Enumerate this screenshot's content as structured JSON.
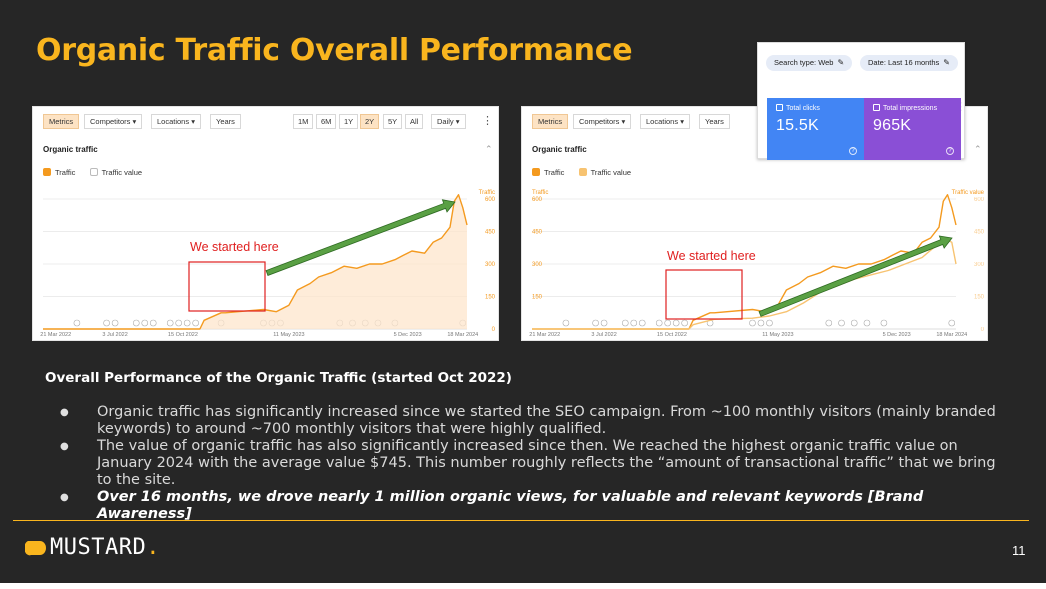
{
  "slide": {
    "title": "Organic Traffic Overall Performance",
    "page_number": "11"
  },
  "colors": {
    "background": "#262626",
    "accent": "#f9b51e",
    "traffic_line": "#f49a1f",
    "traffic_value_line": "#f7c371",
    "annotation_box": "#e02020",
    "arrow": "#5aa044",
    "gsc_clicks": "#4285f4",
    "gsc_impressions": "#8a4fd6"
  },
  "panel1": {
    "toolbar": {
      "metrics": "Metrics",
      "competitors": "Competitors ▾",
      "locations": "Locations ▾",
      "years": "Years"
    },
    "ranges": [
      "1M",
      "6M",
      "1Y",
      "2Y",
      "5Y",
      "All"
    ],
    "active_range": "2Y",
    "granularity": "Daily ▾",
    "header": "Organic traffic",
    "legend": {
      "traffic": "Traffic",
      "traffic_value": "Traffic value"
    },
    "annotation": "We started here"
  },
  "panel2": {
    "toolbar": {
      "metrics": "Metrics",
      "competitors": "Competitors ▾",
      "locations": "Locations ▾",
      "years": "Years"
    },
    "header": "Organic traffic",
    "legend": {
      "traffic": "Traffic",
      "traffic_value": "Traffic value"
    },
    "annotation": "We started here"
  },
  "gsc": {
    "search_type": "Search type: Web",
    "date_range": "Date: Last 16 months",
    "total_clicks_label": "Total clicks",
    "total_clicks_value": "15.5K",
    "total_impressions_label": "Total impressions",
    "total_impressions_value": "965K"
  },
  "chart_data": [
    {
      "type": "area",
      "title": "Organic traffic",
      "y_axis_label": "Traffic",
      "ylim": [
        0,
        600
      ],
      "y_ticks": [
        "600",
        "450",
        "300",
        "150",
        "0"
      ],
      "x_ticks": [
        "21 Mar 2022",
        "3 Jul 2022",
        "15 Oct 2022",
        "11 May 2023",
        "5 Dec 2023",
        "18 Mar 2024"
      ],
      "series": [
        {
          "name": "Traffic",
          "x": [
            0.0,
            0.37,
            0.38,
            0.42,
            0.43,
            0.52,
            0.55,
            0.58,
            0.6,
            0.63,
            0.65,
            0.68,
            0.71,
            0.74,
            0.77,
            0.8,
            0.83,
            0.85,
            0.87,
            0.9,
            0.92,
            0.94,
            0.96,
            0.97,
            0.98,
            0.99,
            1.0
          ],
          "values": [
            0,
            0,
            40,
            75,
            75,
            90,
            80,
            110,
            180,
            210,
            240,
            260,
            290,
            280,
            300,
            300,
            320,
            340,
            360,
            350,
            400,
            420,
            470,
            590,
            620,
            560,
            480
          ]
        }
      ]
    },
    {
      "type": "line",
      "title": "Organic traffic",
      "y_axis_label": "Traffic",
      "y2_axis_label": "Traffic value",
      "ylim": [
        0,
        600
      ],
      "y_ticks": [
        "600",
        "450",
        "300",
        "150",
        "0"
      ],
      "x_ticks": [
        "21 Mar 2022",
        "3 Jul 2022",
        "15 Oct 2022",
        "11 May 2023",
        "5 Dec 2023",
        "18 Mar 2024"
      ],
      "series": [
        {
          "name": "Traffic",
          "x": [
            0.0,
            0.37,
            0.38,
            0.42,
            0.43,
            0.52,
            0.55,
            0.58,
            0.6,
            0.63,
            0.65,
            0.68,
            0.71,
            0.74,
            0.77,
            0.8,
            0.83,
            0.85,
            0.87,
            0.9,
            0.92,
            0.94,
            0.96,
            0.97,
            0.98,
            0.99,
            1.0
          ],
          "values": [
            0,
            0,
            40,
            75,
            75,
            90,
            80,
            110,
            180,
            210,
            240,
            260,
            290,
            280,
            300,
            300,
            320,
            340,
            360,
            350,
            400,
            420,
            470,
            590,
            620,
            560,
            480
          ]
        },
        {
          "name": "Traffic value",
          "x": [
            0.0,
            0.37,
            0.38,
            0.42,
            0.43,
            0.52,
            0.56,
            0.6,
            0.64,
            0.68,
            0.72,
            0.76,
            0.8,
            0.84,
            0.88,
            0.92,
            0.95,
            0.97,
            0.99,
            1.0
          ],
          "values": [
            0,
            0,
            20,
            40,
            45,
            50,
            60,
            80,
            120,
            170,
            200,
            230,
            250,
            270,
            300,
            330,
            380,
            420,
            400,
            300
          ]
        }
      ]
    }
  ],
  "body": {
    "subheading": "Overall Performance of the Organic Traffic (started Oct 2022)",
    "bullets": [
      "Organic traffic has significantly increased since we started the SEO campaign. From ~100 monthly visitors (mainly branded keywords) to around ~700 monthly visitors that were highly qualified.",
      "The value of organic traffic has also significantly increased since then. We reached the highest organic traffic value on January 2024 with the average value $745. This number roughly reflects the “amount of transactional traffic” that we bring to the site.",
      "Over 16 months, we drove nearly 1 million organic views, for valuable and relevant keywords [Brand Awareness]"
    ]
  },
  "footer": {
    "brand": "MUSTARD",
    "brand_dot": "."
  }
}
